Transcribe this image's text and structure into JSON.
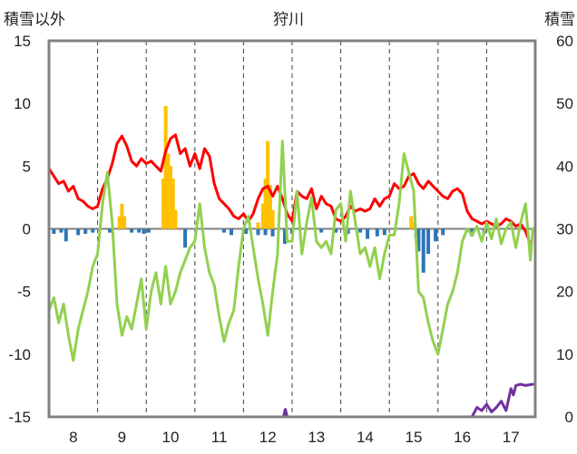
{
  "chart_data": {
    "type": "line",
    "title": "狩川",
    "ylabel_left": "積雪以外",
    "ylabel_right": "積雪",
    "x_ticks": [
      "8",
      "9",
      "10",
      "11",
      "12",
      "13",
      "14",
      "15",
      "16",
      "17"
    ],
    "x_range": [
      7.5,
      17.5
    ],
    "y_left_range": [
      -15,
      15
    ],
    "y_left_ticks": [
      "15",
      "10",
      "5",
      "0",
      "-5",
      "-10",
      "-15"
    ],
    "y_right_range": [
      0,
      60
    ],
    "y_right_ticks": [
      "60",
      "50",
      "40",
      "30",
      "20",
      "10",
      "0"
    ],
    "grid": "dashed vertical at each day boundary",
    "colors": {
      "red": "#ff0000",
      "green": "#92d050",
      "orange": "#ffc000",
      "blue": "#2e75b6",
      "purple": "#7030a0",
      "axis": "#808080",
      "grid": "#404040"
    },
    "series": [
      {
        "style": "line",
        "color": "#ff0000",
        "axis": "left",
        "x": [
          7.5,
          7.6,
          7.7,
          7.8,
          7.9,
          8.0,
          8.1,
          8.2,
          8.3,
          8.4,
          8.5,
          8.6,
          8.7,
          8.8,
          8.9,
          9.0,
          9.1,
          9.2,
          9.3,
          9.4,
          9.5,
          9.6,
          9.7,
          9.8,
          9.9,
          10.0,
          10.1,
          10.2,
          10.3,
          10.4,
          10.5,
          10.6,
          10.7,
          10.8,
          10.9,
          11.0,
          11.1,
          11.2,
          11.3,
          11.4,
          11.5,
          11.6,
          11.7,
          11.8,
          11.9,
          12.0,
          12.1,
          12.2,
          12.3,
          12.4,
          12.5,
          12.6,
          12.7,
          12.8,
          12.9,
          13.0,
          13.1,
          13.2,
          13.3,
          13.4,
          13.5,
          13.6,
          13.7,
          13.8,
          13.9,
          14.0,
          14.1,
          14.2,
          14.3,
          14.4,
          14.5,
          14.6,
          14.7,
          14.8,
          14.9,
          15.0,
          15.1,
          15.2,
          15.3,
          15.4,
          15.5,
          15.6,
          15.7,
          15.8,
          15.9,
          16.0,
          16.1,
          16.2,
          16.3,
          16.4,
          16.5,
          16.6,
          16.7,
          16.8,
          16.9,
          17.0,
          17.1,
          17.2,
          17.3,
          17.4
        ],
        "y": [
          4.8,
          4.2,
          3.6,
          3.8,
          3.0,
          3.4,
          2.4,
          2.2,
          1.8,
          1.6,
          1.8,
          3.2,
          4.0,
          5.2,
          6.8,
          7.4,
          6.6,
          5.4,
          5.0,
          5.6,
          5.2,
          5.4,
          5.0,
          4.6,
          6.2,
          7.2,
          7.5,
          6.0,
          6.4,
          5.0,
          6.0,
          4.8,
          6.4,
          5.8,
          3.6,
          2.4,
          2.0,
          1.6,
          1.0,
          0.8,
          1.2,
          0.6,
          1.2,
          2.4,
          3.2,
          3.4,
          2.6,
          3.4,
          2.4,
          1.2,
          0.6,
          3.0,
          2.6,
          2.4,
          3.2,
          1.6,
          2.6,
          2.0,
          1.8,
          0.8,
          0.6,
          1.0,
          1.8,
          1.4,
          1.6,
          1.4,
          1.6,
          2.4,
          1.8,
          2.4,
          2.6,
          3.6,
          3.2,
          3.4,
          4.2,
          4.4,
          3.6,
          3.2,
          3.8,
          3.4,
          3.0,
          2.6,
          2.4,
          3.0,
          3.2,
          2.8,
          1.4,
          0.8,
          0.6,
          0.4,
          0.6,
          0.4,
          0.2,
          0.4,
          0.8,
          0.6,
          0.2,
          0.4,
          -0.2,
          -1.2
        ]
      },
      {
        "style": "line",
        "color": "#92d050",
        "axis": "left",
        "x": [
          7.5,
          7.6,
          7.7,
          7.8,
          7.9,
          8.0,
          8.1,
          8.2,
          8.3,
          8.4,
          8.5,
          8.6,
          8.7,
          8.8,
          8.9,
          9.0,
          9.1,
          9.2,
          9.3,
          9.4,
          9.5,
          9.6,
          9.7,
          9.8,
          9.9,
          10.0,
          10.1,
          10.2,
          10.3,
          10.4,
          10.5,
          10.6,
          10.7,
          10.8,
          10.9,
          11.0,
          11.1,
          11.2,
          11.3,
          11.4,
          11.5,
          11.6,
          11.7,
          11.8,
          11.9,
          12.0,
          12.1,
          12.2,
          12.3,
          12.4,
          12.5,
          12.6,
          12.7,
          12.8,
          12.9,
          13.0,
          13.1,
          13.2,
          13.3,
          13.4,
          13.5,
          13.6,
          13.7,
          13.8,
          13.9,
          14.0,
          14.1,
          14.2,
          14.3,
          14.4,
          14.5,
          14.6,
          14.7,
          14.8,
          14.9,
          15.0,
          15.1,
          15.2,
          15.3,
          15.4,
          15.5,
          15.6,
          15.7,
          15.8,
          15.9,
          16.0,
          16.1,
          16.2,
          16.3,
          16.4,
          16.5,
          16.6,
          16.7,
          16.8,
          16.9,
          17.0,
          17.1,
          17.2,
          17.3,
          17.4,
          17.45
        ],
        "y": [
          -6.5,
          -5.5,
          -7.5,
          -6.0,
          -8.5,
          -10.5,
          -8.0,
          -6.5,
          -5.0,
          -3.0,
          -2.0,
          2.0,
          4.5,
          0.5,
          -6.0,
          -8.5,
          -7.0,
          -8.0,
          -6.0,
          -4.0,
          -8.0,
          -5.0,
          -3.5,
          -6.0,
          -3.0,
          -6.0,
          -5.0,
          -3.5,
          -2.5,
          -1.5,
          -1.0,
          2.0,
          -1.5,
          -3.5,
          -4.5,
          -7.0,
          -9.0,
          -7.5,
          -6.5,
          -3.0,
          0.0,
          1.0,
          -1.5,
          -4.0,
          -6.0,
          -8.5,
          -5.0,
          -2.0,
          7.0,
          -1.0,
          -1.0,
          3.0,
          -2.0,
          0.5,
          2.5,
          -1.0,
          -1.5,
          -1.0,
          -2.0,
          1.5,
          2.0,
          -1.0,
          3.0,
          0.5,
          -2.0,
          -1.5,
          -3.0,
          -1.5,
          -4.0,
          -2.0,
          -0.5,
          -0.5,
          2.0,
          6.0,
          4.5,
          3.0,
          -5.0,
          -5.5,
          -7.5,
          -9.0,
          -10.0,
          -8.0,
          -6.0,
          -5.0,
          -3.5,
          -1.0,
          0.0,
          -0.5,
          0.2,
          -1.0,
          0.5,
          -0.8,
          0.8,
          -1.2,
          0.0,
          0.5,
          -1.5,
          0.5,
          2.0,
          -2.5,
          0.0
        ]
      },
      {
        "style": "bar",
        "color": "#ffc000",
        "axis": "left",
        "x": [
          8.95,
          9.0,
          9.05,
          9.85,
          9.9,
          9.95,
          10.0,
          10.05,
          10.1,
          11.8,
          11.9,
          11.95,
          12.0,
          12.05,
          12.1,
          14.95,
          15.0
        ],
        "y": [
          1.0,
          2.0,
          1.0,
          4.0,
          9.8,
          6.0,
          5.0,
          4.0,
          1.5,
          0.5,
          2.0,
          4.0,
          7.0,
          3.5,
          1.5,
          1.0,
          0.5
        ]
      },
      {
        "style": "bar",
        "color": "#2e75b6",
        "axis": "left",
        "x": [
          7.6,
          7.75,
          7.85,
          8.1,
          8.25,
          8.4,
          8.75,
          9.2,
          9.35,
          9.45,
          9.55,
          10.3,
          11.1,
          11.25,
          11.55,
          11.8,
          11.95,
          12.1,
          12.35,
          12.5,
          13.1,
          13.4,
          13.65,
          13.9,
          14.05,
          14.25,
          14.4,
          15.05,
          15.1,
          15.2,
          15.3,
          15.45,
          15.6,
          16.2,
          16.45
        ],
        "y": [
          -0.4,
          -0.3,
          -1.0,
          -0.5,
          -0.4,
          -0.3,
          -0.3,
          -0.3,
          -0.3,
          -0.4,
          -0.3,
          -1.5,
          -0.3,
          -0.5,
          -0.4,
          -0.5,
          -0.5,
          -0.6,
          -1.2,
          -0.4,
          -0.3,
          -0.3,
          -0.4,
          -0.3,
          -0.8,
          -0.6,
          -0.5,
          -0.8,
          -1.8,
          -3.5,
          -2.0,
          -1.0,
          -0.5,
          -0.6,
          -0.4
        ]
      },
      {
        "style": "line",
        "color": "#7030a0",
        "axis": "right",
        "x": [
          7.5,
          12.32,
          12.36,
          12.4,
          16.2,
          16.3,
          16.4,
          16.5,
          16.6,
          16.7,
          16.8,
          16.9,
          17.0,
          17.05,
          17.1,
          17.2,
          17.3,
          17.45
        ],
        "y": [
          0,
          0,
          1.2,
          0,
          0,
          1.5,
          1.0,
          2.0,
          0.8,
          1.5,
          2.5,
          1.0,
          4.5,
          3.5,
          5.0,
          5.2,
          5.0,
          5.2
        ]
      }
    ]
  }
}
